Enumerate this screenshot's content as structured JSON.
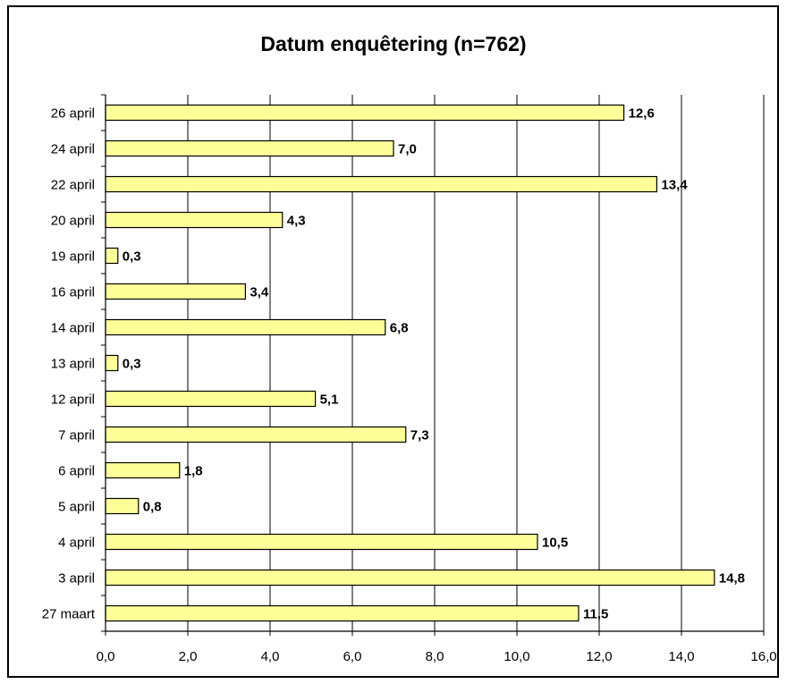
{
  "chart_data": {
    "type": "bar",
    "orientation": "horizontal",
    "title": "Datum enquêtering (n=762)",
    "xlabel": "",
    "ylabel": "",
    "xlim": [
      0,
      16
    ],
    "x_ticks": [
      "0,0",
      "2,0",
      "4,0",
      "6,0",
      "8,0",
      "10,0",
      "12,0",
      "14,0",
      "16,0"
    ],
    "grid": "vertical",
    "bar_color": "#ffff99",
    "categories": [
      "27 maart",
      "3 april",
      "4 april",
      "5 april",
      "6 april",
      "7 april",
      "12 april",
      "13 april",
      "14 april",
      "16 april",
      "19 april",
      "20 april",
      "22 april",
      "24 april",
      "26 april"
    ],
    "values": [
      11.5,
      14.8,
      10.5,
      0.8,
      1.8,
      7.3,
      5.1,
      0.3,
      6.8,
      3.4,
      0.3,
      4.3,
      13.4,
      7.0,
      12.6
    ],
    "value_labels": [
      "11,5",
      "14,8",
      "10,5",
      "0,8",
      "1,8",
      "7,3",
      "5,1",
      "0,3",
      "6,8",
      "3,4",
      "0,3",
      "4,3",
      "13,4",
      "7,0",
      "12,6"
    ]
  }
}
